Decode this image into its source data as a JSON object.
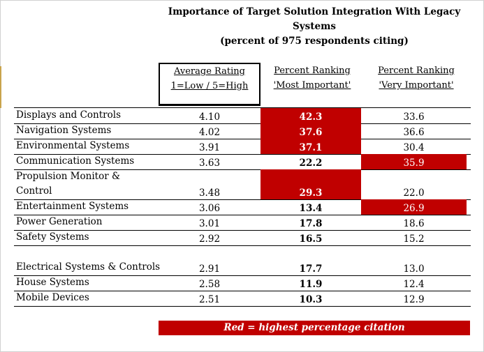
{
  "chart_data": {
    "type": "table",
    "title": "Importance of Target Solution Integration With Legacy",
    "title_line2": "Systems",
    "subtitle": "(percent of 975 respondents citing)",
    "columns": {
      "avg_line1": "Average Rating",
      "avg_line2": "1=Low / 5=High",
      "most_line1": "Percent Ranking",
      "most_line2": "'Most Important'",
      "very_line1": "Percent Ranking",
      "very_line2": "'Very Important'"
    },
    "rows": [
      {
        "name": [
          "Displays and Controls"
        ],
        "avg": "4.10",
        "most": "42.3",
        "very": "33.6",
        "most_hi": true,
        "very_hi": false
      },
      {
        "name": [
          "Navigation Systems"
        ],
        "avg": "4.02",
        "most": "37.6",
        "very": "36.6",
        "most_hi": true,
        "very_hi": false
      },
      {
        "name": [
          "Environmental Systems"
        ],
        "avg": "3.91",
        "most": "37.1",
        "very": "30.4",
        "most_hi": true,
        "very_hi": false
      },
      {
        "name": [
          "Communication Systems"
        ],
        "avg": "3.63",
        "most": "22.2",
        "very": "35.9",
        "most_hi": false,
        "very_hi": true
      },
      {
        "name": [
          "Propulsion Monitor &",
          "Control"
        ],
        "avg": "3.48",
        "most": "29.3",
        "very": "22.0",
        "most_hi": true,
        "very_hi": false
      },
      {
        "name": [
          "Entertainment Systems"
        ],
        "avg": "3.06",
        "most": "13.4",
        "very": "26.9",
        "most_hi": false,
        "very_hi": true
      },
      {
        "name": [
          "Power Generation"
        ],
        "avg": "3.01",
        "most": "17.8",
        "very": "18.6",
        "most_hi": false,
        "very_hi": false
      },
      {
        "name": [
          "Safety Systems"
        ],
        "avg": "2.92",
        "most": "16.5",
        "very": "15.2",
        "most_hi": false,
        "very_hi": false
      },
      {
        "name": [
          "Electrical Systems & Controls"
        ],
        "avg": "2.91",
        "most": "17.7",
        "very": "13.0",
        "most_hi": false,
        "very_hi": false
      },
      {
        "name": [
          "House Systems"
        ],
        "avg": "2.58",
        "most": "11.9",
        "very": "12.4",
        "most_hi": false,
        "very_hi": false
      },
      {
        "name": [
          "Mobile Devices"
        ],
        "avg": "2.51",
        "most": "10.3",
        "very": "12.9",
        "most_hi": false,
        "very_hi": false
      }
    ],
    "highlight_color": "#c00000",
    "legend": "Red = highest percentage citation"
  }
}
